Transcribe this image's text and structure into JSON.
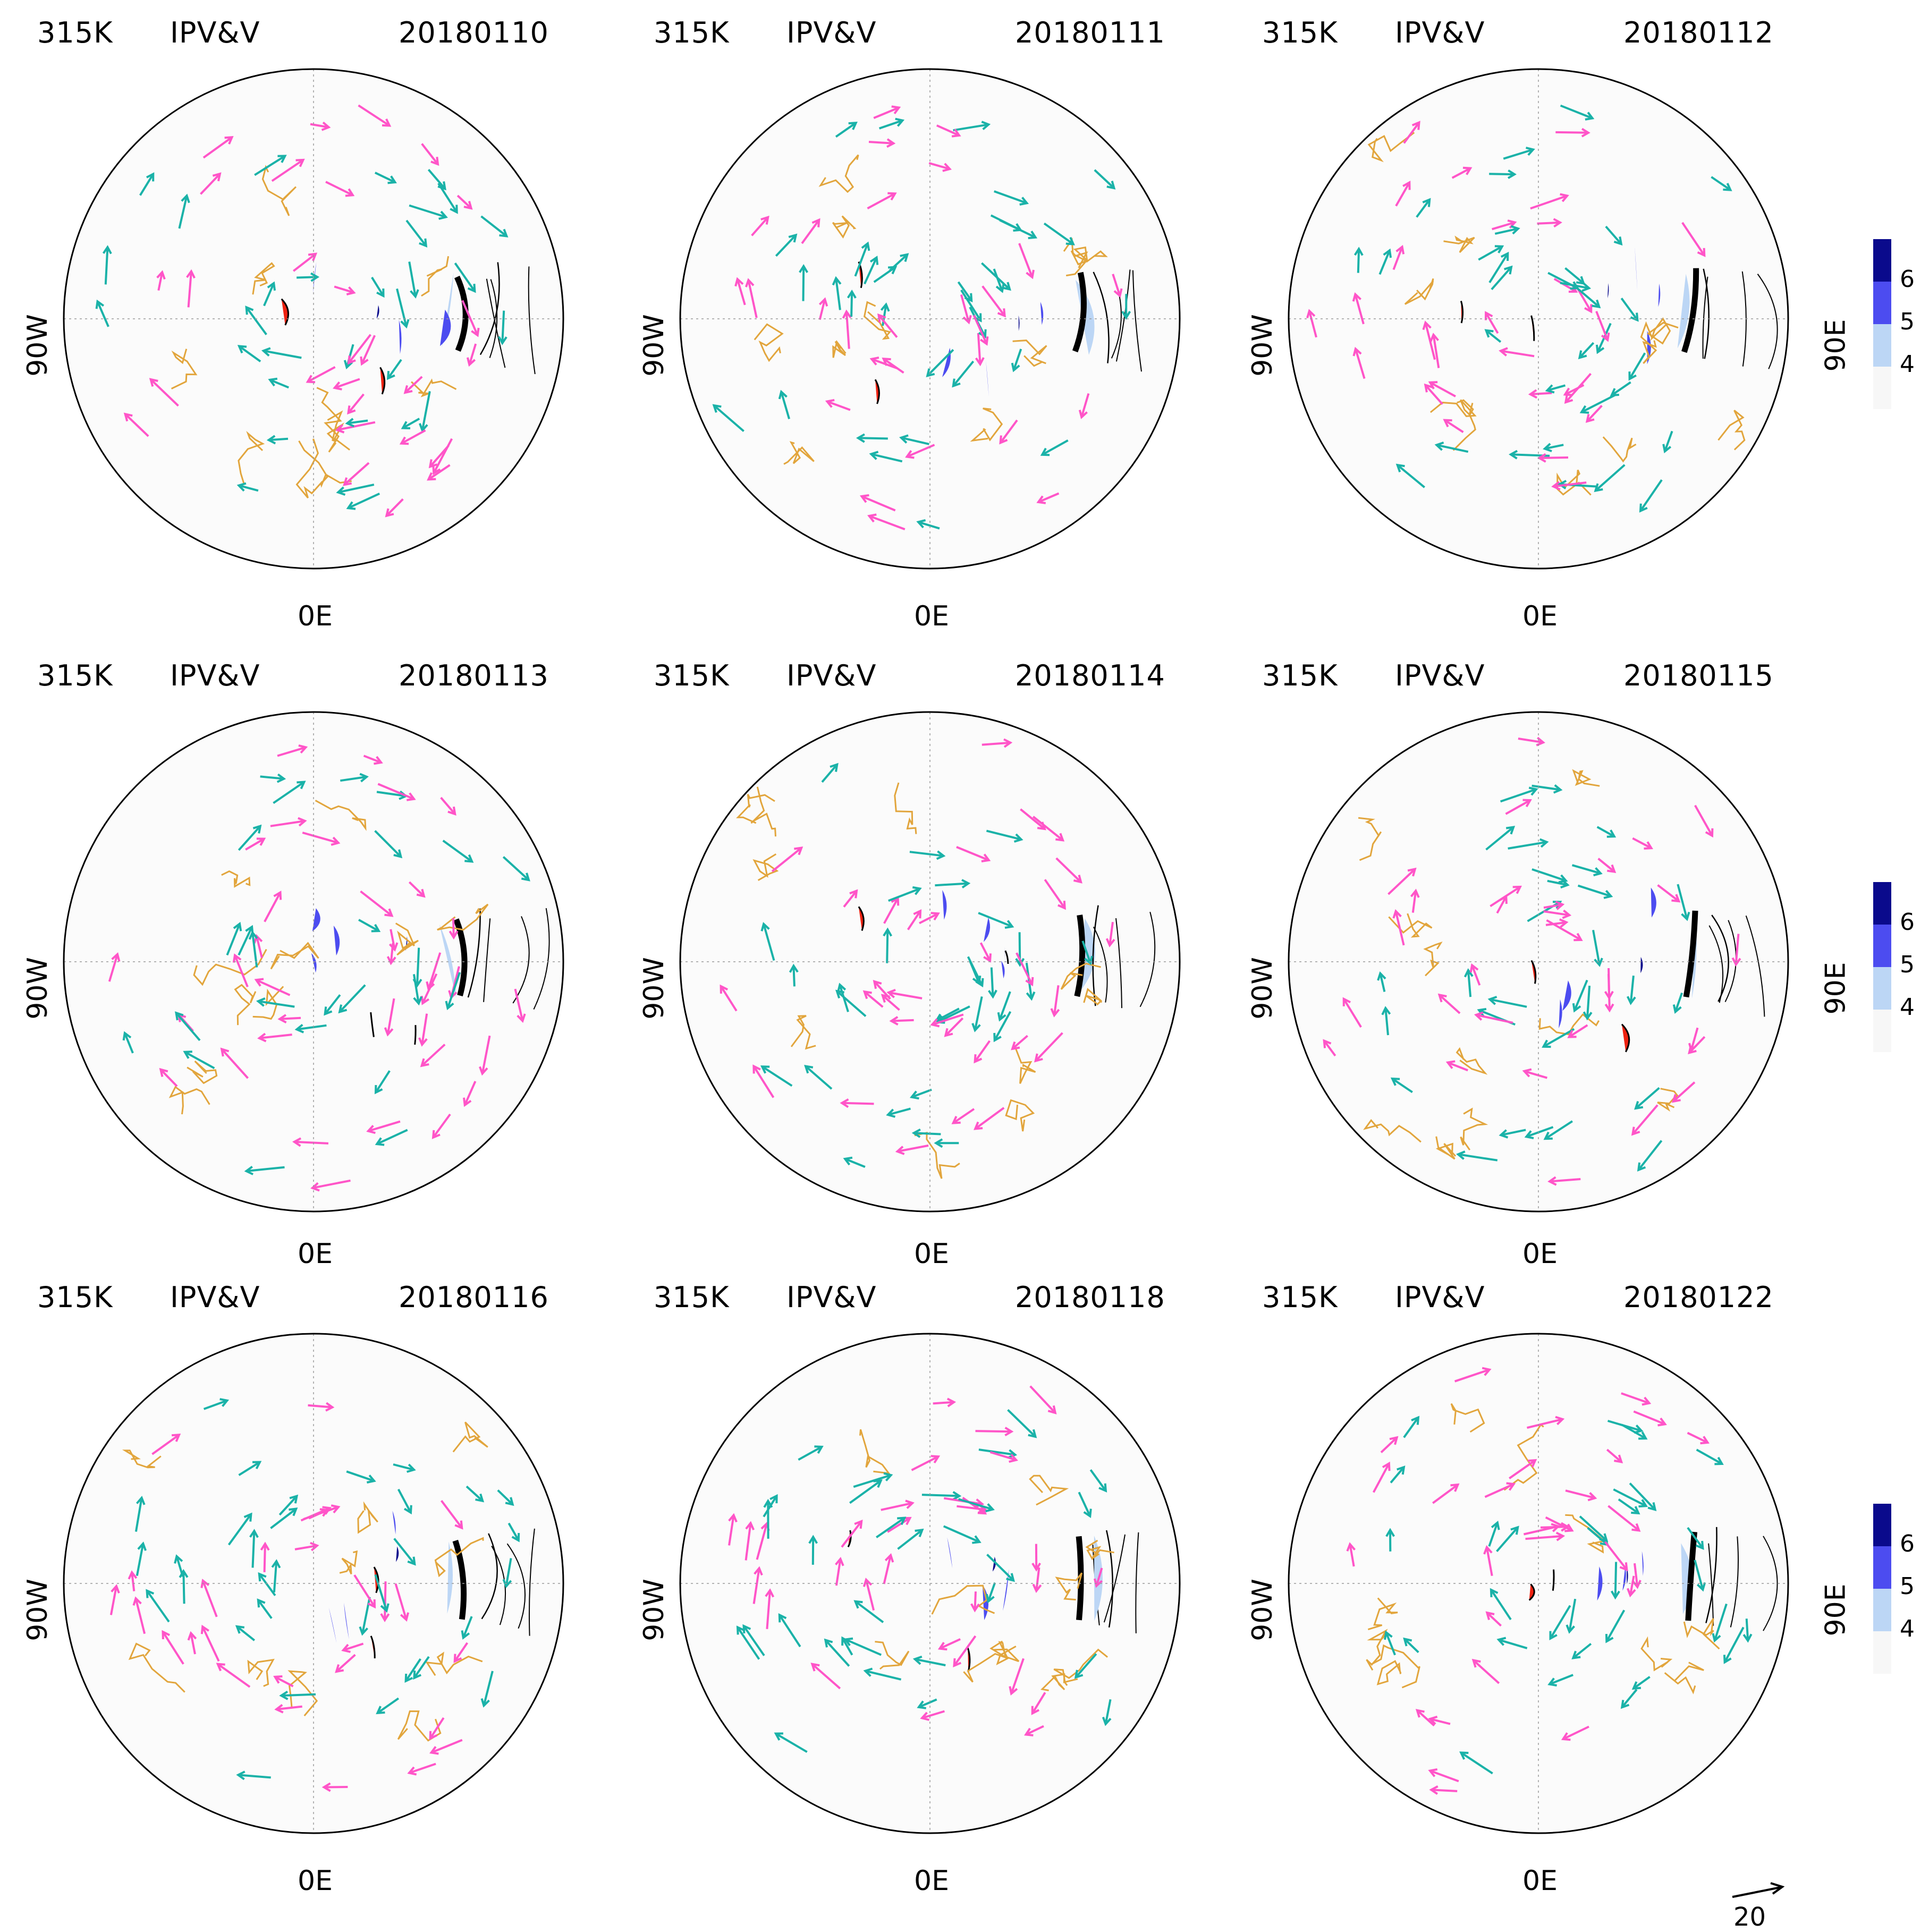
{
  "colors": {
    "fill_level_4": "#bcd6f5",
    "fill_level_5": "#4c4cf0",
    "fill_level_6": "#0a0a8c",
    "fill_negative": "#ee2211",
    "wind_vector_a": "#ff55c8",
    "wind_vector_b": "#1ab2a8",
    "coastline": "#e2a53c",
    "contour": "#000000"
  },
  "panels": [
    {
      "level": "315K",
      "variable": "IPV&V",
      "date": "20180110",
      "bottom_label": "0E",
      "left_label": "90W",
      "right_label": ""
    },
    {
      "level": "315K",
      "variable": "IPV&V",
      "date": "20180111",
      "bottom_label": "0E",
      "left_label": "90W",
      "right_label": ""
    },
    {
      "level": "315K",
      "variable": "IPV&V",
      "date": "20180112",
      "bottom_label": "0E",
      "left_label": "90W",
      "right_label": "90E"
    },
    {
      "level": "315K",
      "variable": "IPV&V",
      "date": "20180113",
      "bottom_label": "0E",
      "left_label": "90W",
      "right_label": ""
    },
    {
      "level": "315K",
      "variable": "IPV&V",
      "date": "20180114",
      "bottom_label": "0E",
      "left_label": "90W",
      "right_label": ""
    },
    {
      "level": "315K",
      "variable": "IPV&V",
      "date": "20180115",
      "bottom_label": "0E",
      "left_label": "90W",
      "right_label": "90E"
    },
    {
      "level": "315K",
      "variable": "IPV&V",
      "date": "20180116",
      "bottom_label": "0E",
      "left_label": "90W",
      "right_label": ""
    },
    {
      "level": "315K",
      "variable": "IPV&V",
      "date": "20180118",
      "bottom_label": "0E",
      "left_label": "90W",
      "right_label": ""
    },
    {
      "level": "315K",
      "variable": "IPV&V",
      "date": "20180122",
      "bottom_label": "0E",
      "left_label": "90W",
      "right_label": "90E"
    }
  ],
  "colorbar": {
    "labels": [
      "6",
      "5",
      "4"
    ]
  },
  "vector_reference": {
    "label": "20"
  }
}
